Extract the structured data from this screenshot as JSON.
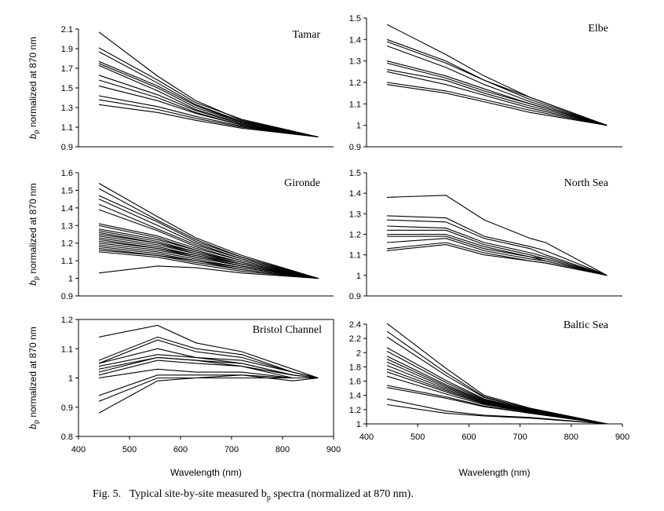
{
  "caption": {
    "prefix": "Fig. 5.",
    "text": "Typical site-by-site measured b",
    "sub": "p",
    "suffix": " spectra (normalized at 870 nm)."
  },
  "chart_data": [
    {
      "type": "line",
      "title": "Tamar",
      "ylabel": "b_p normalized at 870 nm",
      "xlabel": "",
      "xlim": [
        400,
        900
      ],
      "ylim": [
        0.9,
        2.1
      ],
      "yticks": [
        "0.9",
        "1.1",
        "1.3",
        "1.5",
        "1.7",
        "1.9",
        "2.1"
      ],
      "xticks": [],
      "x": [
        440,
        555,
        630,
        720,
        870
      ],
      "series": [
        {
          "name": "s1",
          "values": [
            2.07,
            1.62,
            1.37,
            1.17,
            1.0
          ]
        },
        {
          "name": "s2",
          "values": [
            1.91,
            1.58,
            1.35,
            1.18,
            1.0
          ]
        },
        {
          "name": "s3",
          "values": [
            1.87,
            1.55,
            1.33,
            1.16,
            1.0
          ]
        },
        {
          "name": "s4",
          "values": [
            1.77,
            1.52,
            1.32,
            1.15,
            1.0
          ]
        },
        {
          "name": "s5",
          "values": [
            1.75,
            1.5,
            1.3,
            1.15,
            1.0
          ]
        },
        {
          "name": "s6",
          "values": [
            1.73,
            1.47,
            1.28,
            1.14,
            1.0
          ]
        },
        {
          "name": "s7",
          "values": [
            1.63,
            1.43,
            1.27,
            1.13,
            1.0
          ]
        },
        {
          "name": "s8",
          "values": [
            1.58,
            1.4,
            1.25,
            1.12,
            1.0
          ]
        },
        {
          "name": "s9",
          "values": [
            1.52,
            1.37,
            1.24,
            1.12,
            1.0
          ]
        },
        {
          "name": "s10",
          "values": [
            1.42,
            1.31,
            1.21,
            1.11,
            1.0
          ]
        },
        {
          "name": "s11",
          "values": [
            1.38,
            1.28,
            1.19,
            1.1,
            1.0
          ]
        },
        {
          "name": "s12",
          "values": [
            1.33,
            1.25,
            1.17,
            1.09,
            1.0
          ]
        }
      ]
    },
    {
      "type": "line",
      "title": "Elbe",
      "ylabel": "",
      "xlabel": "",
      "xlim": [
        400,
        900
      ],
      "ylim": [
        0.9,
        1.5
      ],
      "yticks": [
        "0.9",
        "1",
        "1.1",
        "1.2",
        "1.3",
        "1.4",
        "1.5"
      ],
      "xticks": [],
      "x": [
        440,
        555,
        630,
        720,
        870
      ],
      "series": [
        {
          "name": "s1",
          "values": [
            1.47,
            1.33,
            1.23,
            1.13,
            1.0
          ]
        },
        {
          "name": "s2",
          "values": [
            1.4,
            1.3,
            1.21,
            1.13,
            1.0
          ]
        },
        {
          "name": "s3",
          "values": [
            1.39,
            1.29,
            1.21,
            1.12,
            1.0
          ]
        },
        {
          "name": "s4",
          "values": [
            1.37,
            1.27,
            1.19,
            1.11,
            1.0
          ]
        },
        {
          "name": "s5",
          "values": [
            1.3,
            1.23,
            1.17,
            1.1,
            1.0
          ]
        },
        {
          "name": "s6",
          "values": [
            1.29,
            1.22,
            1.16,
            1.1,
            1.0
          ]
        },
        {
          "name": "s7",
          "values": [
            1.26,
            1.21,
            1.15,
            1.09,
            1.0
          ]
        },
        {
          "name": "s8",
          "values": [
            1.25,
            1.19,
            1.14,
            1.08,
            1.0
          ]
        },
        {
          "name": "s9",
          "values": [
            1.2,
            1.16,
            1.12,
            1.07,
            1.0
          ]
        },
        {
          "name": "s10",
          "values": [
            1.19,
            1.15,
            1.11,
            1.06,
            1.0
          ]
        }
      ]
    },
    {
      "type": "line",
      "title": "Gironde",
      "ylabel": "b_p normalized at 870 nm",
      "xlabel": "",
      "xlim": [
        400,
        900
      ],
      "ylim": [
        0.9,
        1.6
      ],
      "yticks": [
        "0.9",
        "1",
        "1.1",
        "1.2",
        "1.3",
        "1.4",
        "1.5",
        "1.6"
      ],
      "xticks": [],
      "x": [
        440,
        555,
        630,
        720,
        870
      ],
      "series": [
        {
          "name": "s1",
          "values": [
            1.54,
            1.35,
            1.23,
            1.13,
            1.0
          ]
        },
        {
          "name": "s2",
          "values": [
            1.51,
            1.33,
            1.22,
            1.12,
            1.0
          ]
        },
        {
          "name": "s3",
          "values": [
            1.47,
            1.32,
            1.21,
            1.12,
            1.0
          ]
        },
        {
          "name": "s4",
          "values": [
            1.45,
            1.3,
            1.2,
            1.11,
            1.0
          ]
        },
        {
          "name": "s5",
          "values": [
            1.42,
            1.28,
            1.19,
            1.11,
            1.0
          ]
        },
        {
          "name": "s6",
          "values": [
            1.39,
            1.27,
            1.18,
            1.1,
            1.0
          ]
        },
        {
          "name": "s7",
          "values": [
            1.31,
            1.24,
            1.17,
            1.1,
            1.0
          ]
        },
        {
          "name": "s8",
          "values": [
            1.3,
            1.23,
            1.16,
            1.09,
            1.0
          ]
        },
        {
          "name": "s9",
          "values": [
            1.28,
            1.22,
            1.16,
            1.09,
            1.0
          ]
        },
        {
          "name": "s10",
          "values": [
            1.27,
            1.21,
            1.15,
            1.09,
            1.0
          ]
        },
        {
          "name": "s11",
          "values": [
            1.26,
            1.2,
            1.15,
            1.08,
            1.0
          ]
        },
        {
          "name": "s12",
          "values": [
            1.25,
            1.2,
            1.14,
            1.08,
            1.0
          ]
        },
        {
          "name": "s13",
          "values": [
            1.24,
            1.19,
            1.14,
            1.08,
            1.0
          ]
        },
        {
          "name": "s14",
          "values": [
            1.23,
            1.18,
            1.13,
            1.08,
            1.0
          ]
        },
        {
          "name": "s15",
          "values": [
            1.22,
            1.17,
            1.13,
            1.07,
            1.0
          ]
        },
        {
          "name": "s16",
          "values": [
            1.21,
            1.17,
            1.12,
            1.07,
            1.0
          ]
        },
        {
          "name": "s17",
          "values": [
            1.2,
            1.16,
            1.12,
            1.07,
            1.0
          ]
        },
        {
          "name": "s18",
          "values": [
            1.19,
            1.15,
            1.11,
            1.06,
            1.0
          ]
        },
        {
          "name": "s19",
          "values": [
            1.18,
            1.14,
            1.1,
            1.06,
            1.0
          ]
        },
        {
          "name": "s20",
          "values": [
            1.17,
            1.13,
            1.1,
            1.05,
            1.0
          ]
        },
        {
          "name": "s21",
          "values": [
            1.16,
            1.13,
            1.09,
            1.05,
            1.0
          ]
        },
        {
          "name": "s22",
          "values": [
            1.15,
            1.12,
            1.08,
            1.04,
            1.0
          ]
        },
        {
          "name": "s23",
          "values": [
            1.03,
            1.07,
            1.06,
            1.03,
            1.0
          ]
        }
      ]
    },
    {
      "type": "line",
      "title": "North Sea",
      "ylabel": "",
      "xlabel": "",
      "xlim": [
        400,
        900
      ],
      "ylim": [
        0.9,
        1.5
      ],
      "yticks": [
        "0.9",
        "1",
        "1.1",
        "1.2",
        "1.3",
        "1.4",
        "1.5"
      ],
      "xticks": [],
      "x": [
        440,
        555,
        630,
        720,
        750,
        870
      ],
      "series": [
        {
          "name": "s1",
          "values": [
            1.38,
            1.39,
            1.27,
            1.18,
            1.16,
            1.0
          ]
        },
        {
          "name": "s2",
          "values": [
            1.29,
            1.28,
            1.19,
            1.14,
            1.12,
            1.0
          ]
        },
        {
          "name": "s3",
          "values": [
            1.27,
            1.26,
            1.18,
            1.13,
            1.1,
            1.0
          ]
        },
        {
          "name": "s4",
          "values": [
            1.24,
            1.23,
            1.16,
            1.11,
            1.09,
            1.0
          ]
        },
        {
          "name": "s5",
          "values": [
            1.22,
            1.22,
            1.15,
            1.1,
            1.08,
            1.0
          ]
        },
        {
          "name": "s6",
          "values": [
            1.2,
            1.2,
            1.14,
            1.09,
            1.08,
            1.0
          ]
        },
        {
          "name": "s7",
          "values": [
            1.19,
            1.19,
            1.13,
            1.09,
            1.07,
            1.0
          ]
        },
        {
          "name": "s8",
          "values": [
            1.16,
            1.18,
            1.12,
            1.08,
            1.07,
            1.0
          ]
        },
        {
          "name": "s9",
          "values": [
            1.13,
            1.16,
            1.11,
            1.07,
            1.06,
            1.0
          ]
        },
        {
          "name": "s10",
          "values": [
            1.12,
            1.15,
            1.1,
            1.07,
            1.06,
            1.0
          ]
        }
      ]
    },
    {
      "type": "line",
      "title": "Bristol Channel",
      "ylabel": "b_p normalized at 870 nm",
      "xlabel": "Wavelength (nm)",
      "xlim": [
        400,
        900
      ],
      "ylim": [
        0.8,
        1.2
      ],
      "yticks": [
        "0.8",
        "0.9",
        "1",
        "1.1",
        "1.2"
      ],
      "xticks": [
        "400",
        "500",
        "600",
        "700",
        "800",
        "900"
      ],
      "x": [
        440,
        555,
        630,
        720,
        820,
        870
      ],
      "series": [
        {
          "name": "s1",
          "values": [
            1.14,
            1.18,
            1.12,
            1.09,
            1.03,
            1.0
          ]
        },
        {
          "name": "s2",
          "values": [
            1.06,
            1.14,
            1.1,
            1.08,
            1.02,
            1.0
          ]
        },
        {
          "name": "s3",
          "values": [
            1.05,
            1.13,
            1.09,
            1.07,
            1.02,
            1.0
          ]
        },
        {
          "name": "s4",
          "values": [
            1.05,
            1.1,
            1.07,
            1.06,
            1.02,
            1.0
          ]
        },
        {
          "name": "s5",
          "values": [
            1.04,
            1.08,
            1.07,
            1.05,
            1.01,
            1.0
          ]
        },
        {
          "name": "s6",
          "values": [
            1.03,
            1.07,
            1.06,
            1.05,
            1.01,
            1.0
          ]
        },
        {
          "name": "s7",
          "values": [
            1.02,
            1.07,
            1.06,
            1.04,
            1.01,
            1.0
          ]
        },
        {
          "name": "s8",
          "values": [
            1.01,
            1.06,
            1.05,
            1.04,
            1.0,
            1.0
          ]
        },
        {
          "name": "s9",
          "values": [
            1.0,
            1.03,
            1.02,
            1.02,
            1.0,
            1.0
          ]
        },
        {
          "name": "s10",
          "values": [
            0.94,
            1.01,
            1.01,
            1.01,
            1.0,
            1.0
          ]
        },
        {
          "name": "s11",
          "values": [
            0.92,
            1.0,
            1.0,
            1.0,
            1.0,
            1.0
          ]
        },
        {
          "name": "s12",
          "values": [
            0.88,
            0.99,
            1.0,
            1.01,
            0.99,
            1.0
          ]
        }
      ]
    },
    {
      "type": "line",
      "title": "Baltic Sea",
      "ylabel": "",
      "xlabel": "Wavelength (nm)",
      "xlim": [
        400,
        900
      ],
      "ylim": [
        1.0,
        2.4
      ],
      "yticks": [
        "1",
        "1.2",
        "1.4",
        "1.6",
        "1.8",
        "2",
        "2.2",
        "2.4"
      ],
      "xticks": [
        "400",
        "500",
        "600",
        "700",
        "800",
        "900"
      ],
      "x": [
        440,
        555,
        630,
        720,
        870
      ],
      "series": [
        {
          "name": "s1",
          "values": [
            2.41,
            1.78,
            1.4,
            1.22,
            1.0
          ]
        },
        {
          "name": "s2",
          "values": [
            2.3,
            1.72,
            1.38,
            1.21,
            1.0
          ]
        },
        {
          "name": "s3",
          "values": [
            2.22,
            1.68,
            1.37,
            1.21,
            1.0
          ]
        },
        {
          "name": "s4",
          "values": [
            2.07,
            1.61,
            1.35,
            1.2,
            1.0
          ]
        },
        {
          "name": "s5",
          "values": [
            2.02,
            1.58,
            1.34,
            1.2,
            1.0
          ]
        },
        {
          "name": "s6",
          "values": [
            1.95,
            1.55,
            1.33,
            1.19,
            1.0
          ]
        },
        {
          "name": "s7",
          "values": [
            1.91,
            1.53,
            1.32,
            1.19,
            1.0
          ]
        },
        {
          "name": "s8",
          "values": [
            1.87,
            1.51,
            1.31,
            1.18,
            1.0
          ]
        },
        {
          "name": "s9",
          "values": [
            1.82,
            1.49,
            1.3,
            1.18,
            1.0
          ]
        },
        {
          "name": "s10",
          "values": [
            1.77,
            1.47,
            1.29,
            1.17,
            1.0
          ]
        },
        {
          "name": "s11",
          "values": [
            1.73,
            1.45,
            1.28,
            1.17,
            1.0
          ]
        },
        {
          "name": "s12",
          "values": [
            1.67,
            1.42,
            1.27,
            1.16,
            1.0
          ]
        },
        {
          "name": "s13",
          "values": [
            1.54,
            1.38,
            1.25,
            1.15,
            1.0
          ]
        },
        {
          "name": "s14",
          "values": [
            1.51,
            1.36,
            1.24,
            1.15,
            1.0
          ]
        },
        {
          "name": "s15",
          "values": [
            1.35,
            1.18,
            1.12,
            1.09,
            1.0
          ]
        },
        {
          "name": "s16",
          "values": [
            1.27,
            1.15,
            1.11,
            1.08,
            1.0
          ]
        }
      ]
    }
  ]
}
